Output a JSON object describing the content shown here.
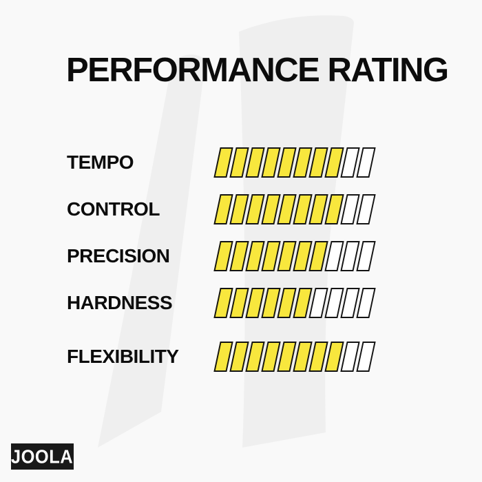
{
  "title": "PERFORMANCE RATING",
  "brand": {
    "logo_text": "JOOLA"
  },
  "colors": {
    "background": "#F9F9F9",
    "watermark": "#EFEFEF",
    "text": "#0C0C0C",
    "bar_filled": "#F8E73D",
    "bar_empty": "#FFFFFF",
    "bar_outline": "#141414",
    "logo_background": "#191919",
    "logo_text": "#FFFFFF"
  },
  "chart_data": {
    "type": "bar",
    "subtype": "segmented-rating-bars",
    "title": "PERFORMANCE RATING",
    "orientation": "horizontal",
    "max_segments": 10,
    "categories": [
      "TEMPO",
      "CONTROL",
      "PRECISION",
      "HARDNESS",
      "FLEXIBILITY"
    ],
    "values": [
      8,
      8,
      7,
      6,
      8
    ],
    "value_range": [
      0,
      10
    ],
    "legend": "off"
  }
}
